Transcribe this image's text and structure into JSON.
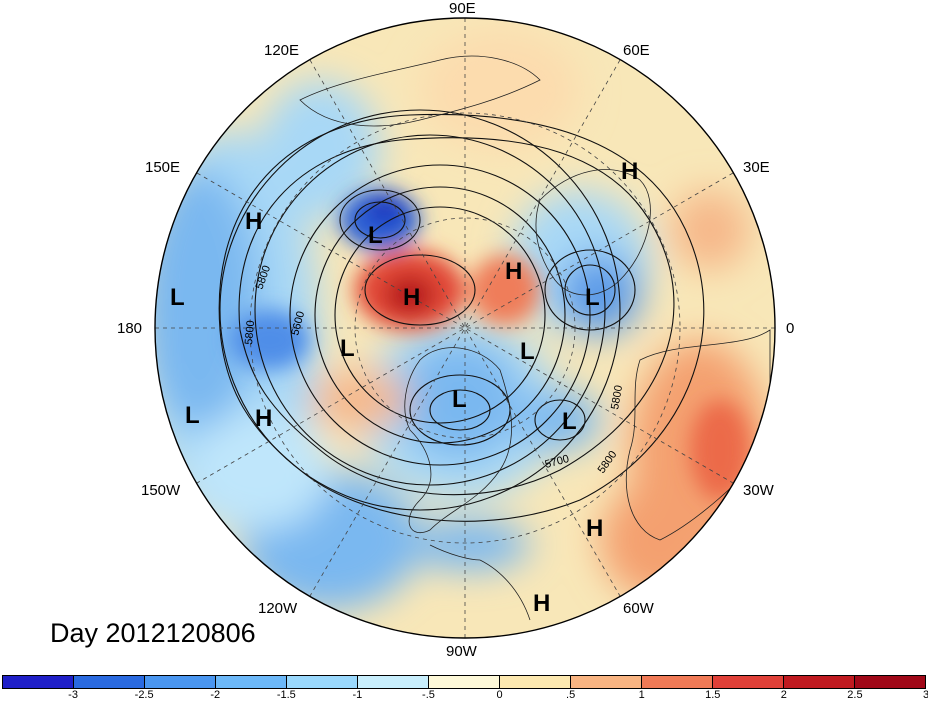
{
  "title": "Day 2012120806",
  "lon_labels": {
    "deg90e": "90E",
    "deg60e": "60E",
    "deg30e": "30E",
    "deg0": "0",
    "deg30w": "30W",
    "deg60w": "60W",
    "deg90w": "90W",
    "deg120w": "120W",
    "deg150w": "150W",
    "deg180": "180",
    "deg150e": "150E",
    "deg120e": "120E"
  },
  "contour_labels": [
    "5800",
    "5600",
    "5800",
    "5700",
    "5800",
    "5800"
  ],
  "pressure_centers": [
    {
      "label": "H",
      "region": "north-pacific-east-asia"
    },
    {
      "label": "L",
      "region": "east-siberia"
    },
    {
      "label": "L",
      "region": "north-pacific"
    },
    {
      "label": "H",
      "region": "arctic-siberia"
    },
    {
      "label": "H",
      "region": "north-africa"
    },
    {
      "label": "H",
      "region": "scandinavia-arctic"
    },
    {
      "label": "L",
      "region": "europe"
    },
    {
      "label": "L",
      "region": "bering-sea"
    },
    {
      "label": "L",
      "region": "greenland"
    },
    {
      "label": "L",
      "region": "central-pacific"
    },
    {
      "label": "H",
      "region": "alaska-gulf"
    },
    {
      "label": "L",
      "region": "canada"
    },
    {
      "label": "L",
      "region": "north-atlantic"
    },
    {
      "label": "H",
      "region": "subtropical-atlantic"
    },
    {
      "label": "H",
      "region": "caribbean"
    }
  ],
  "colorbar": {
    "colors": [
      "#1f1fc8",
      "#2a6ae0",
      "#4a96f0",
      "#6cb8f8",
      "#9ad8fc",
      "#c8eefc",
      "#fdf8d8",
      "#fce8b0",
      "#f8b482",
      "#f07a56",
      "#e04038",
      "#c01a20",
      "#a00818"
    ],
    "ticks": [
      "-3",
      "-2.5",
      "-2",
      "-1.5",
      "-1",
      "-.5",
      "0",
      ".5",
      "1",
      "1.5",
      "2",
      "2.5",
      "3"
    ]
  }
}
